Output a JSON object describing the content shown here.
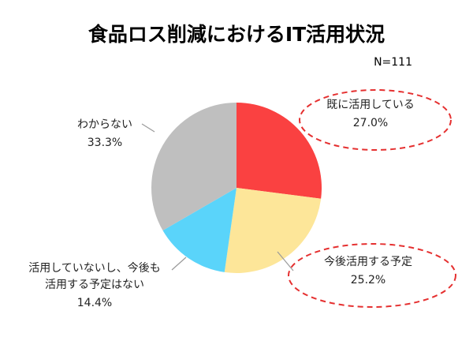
{
  "chart_data": {
    "type": "pie",
    "title": "食品ロス削減におけるIT活用状況",
    "note": "N=111",
    "slices": [
      {
        "label_lines": [
          "既に活用している"
        ],
        "value": 27.0,
        "value_text": "27.0%",
        "color": "#fa4141"
      },
      {
        "label_lines": [
          "今後活用する予定"
        ],
        "value": 25.2,
        "value_text": "25.2%",
        "color": "#fde699"
      },
      {
        "label_lines": [
          "活用していないし、今後も",
          "活用する予定はない"
        ],
        "value": 14.4,
        "value_text": "14.4%",
        "color": "#5ad4fa"
      },
      {
        "label_lines": [
          "わからない"
        ],
        "value": 33.3,
        "value_text": "33.3%",
        "color": "#bfbfbf"
      }
    ],
    "highlight_color": "#e53030"
  }
}
